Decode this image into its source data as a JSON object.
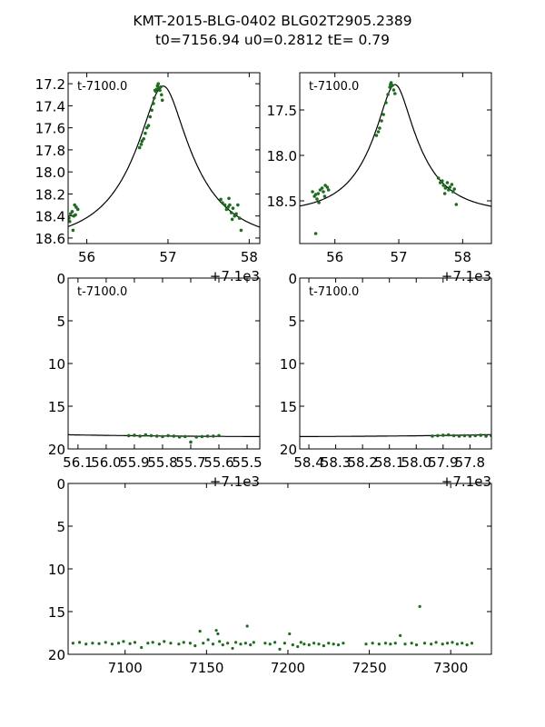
{
  "title": {
    "line1": "KMT-2015-BLG-0402 BLG02T2905.2389",
    "line2": "t0=7156.94 u0=0.2812 tE=   0.79"
  },
  "colors": {
    "points": "#1f6b1f",
    "model": "#000000"
  },
  "chart_data": [
    {
      "type": "scatter",
      "name": "zoom-peak-left",
      "annotation": "t-7100.0",
      "offset_text": "+7.1e3",
      "xlim": [
        55.77,
        58.13
      ],
      "ylim": [
        18.65,
        17.1
      ],
      "xticks": [
        {
          "v": 56,
          "label": "56"
        },
        {
          "v": 57,
          "label": "57"
        },
        {
          "v": 58,
          "label": "58"
        }
      ],
      "yticks": [
        {
          "v": 17.2,
          "label": "17.2"
        },
        {
          "v": 17.4,
          "label": "17.4"
        },
        {
          "v": 17.6,
          "label": "17.6"
        },
        {
          "v": 17.8,
          "label": "17.8"
        },
        {
          "v": 18.0,
          "label": "18.0"
        },
        {
          "v": 18.2,
          "label": "18.2"
        },
        {
          "v": 18.4,
          "label": "18.4"
        },
        {
          "v": 18.6,
          "label": "18.6"
        }
      ],
      "model": true,
      "points": [
        [
          55.78,
          18.42
        ],
        [
          55.8,
          18.38
        ],
        [
          55.82,
          18.36
        ],
        [
          55.84,
          18.4
        ],
        [
          55.85,
          18.3
        ],
        [
          55.87,
          18.32
        ],
        [
          55.89,
          18.34
        ],
        [
          55.79,
          18.45
        ],
        [
          55.83,
          18.53
        ],
        [
          55.86,
          18.39
        ],
        [
          56.65,
          17.78
        ],
        [
          56.67,
          17.75
        ],
        [
          56.68,
          17.72
        ],
        [
          56.7,
          17.7
        ],
        [
          56.72,
          17.65
        ],
        [
          56.74,
          17.6
        ],
        [
          56.76,
          17.58
        ],
        [
          56.78,
          17.5
        ],
        [
          56.8,
          17.44
        ],
        [
          56.82,
          17.38
        ],
        [
          56.83,
          17.33
        ],
        [
          56.85,
          17.27
        ],
        [
          56.86,
          17.25
        ],
        [
          56.87,
          17.22
        ],
        [
          56.88,
          17.2
        ],
        [
          56.89,
          17.24
        ],
        [
          56.9,
          17.26
        ],
        [
          56.91,
          17.23
        ],
        [
          56.92,
          17.3
        ],
        [
          56.93,
          17.35
        ],
        [
          56.84,
          17.26
        ],
        [
          57.65,
          18.25
        ],
        [
          57.67,
          18.28
        ],
        [
          57.7,
          18.3
        ],
        [
          57.72,
          18.34
        ],
        [
          57.74,
          18.32
        ],
        [
          57.76,
          18.3
        ],
        [
          57.78,
          18.37
        ],
        [
          57.8,
          18.33
        ],
        [
          57.82,
          18.4
        ],
        [
          57.84,
          18.38
        ],
        [
          57.86,
          18.3
        ],
        [
          57.88,
          18.42
        ],
        [
          57.75,
          18.24
        ],
        [
          57.9,
          18.53
        ],
        [
          57.79,
          18.43
        ]
      ]
    },
    {
      "type": "scatter",
      "name": "zoom-peak-right",
      "annotation": "t-7100.0",
      "offset_text": "+7.1e3",
      "xlim": [
        55.45,
        58.45
      ],
      "ylim": [
        18.97,
        17.09
      ],
      "xticks": [
        {
          "v": 56,
          "label": "56"
        },
        {
          "v": 57,
          "label": "57"
        },
        {
          "v": 58,
          "label": "58"
        }
      ],
      "yticks": [
        {
          "v": 17.5,
          "label": "17.5"
        },
        {
          "v": 18.0,
          "label": "18.0"
        },
        {
          "v": 18.5,
          "label": "18.5"
        }
      ],
      "model": true,
      "points": [
        [
          55.65,
          18.4
        ],
        [
          55.68,
          18.45
        ],
        [
          55.7,
          18.43
        ],
        [
          55.72,
          18.48
        ],
        [
          55.74,
          18.42
        ],
        [
          55.77,
          18.38
        ],
        [
          55.8,
          18.36
        ],
        [
          55.82,
          18.4
        ],
        [
          55.85,
          18.33
        ],
        [
          55.88,
          18.35
        ],
        [
          55.9,
          18.38
        ],
        [
          55.75,
          18.52
        ],
        [
          55.7,
          18.86
        ],
        [
          55.84,
          18.45
        ],
        [
          56.65,
          17.78
        ],
        [
          56.68,
          17.74
        ],
        [
          56.7,
          17.7
        ],
        [
          56.73,
          17.62
        ],
        [
          56.76,
          17.55
        ],
        [
          56.8,
          17.42
        ],
        [
          56.83,
          17.33
        ],
        [
          56.86,
          17.25
        ],
        [
          56.88,
          17.2
        ],
        [
          56.9,
          17.23
        ],
        [
          56.92,
          17.28
        ],
        [
          56.87,
          17.22
        ],
        [
          56.94,
          17.32
        ],
        [
          57.62,
          18.25
        ],
        [
          57.65,
          18.3
        ],
        [
          57.68,
          18.28
        ],
        [
          57.7,
          18.33
        ],
        [
          57.73,
          18.36
        ],
        [
          57.76,
          18.3
        ],
        [
          57.78,
          18.38
        ],
        [
          57.8,
          18.35
        ],
        [
          57.83,
          18.32
        ],
        [
          57.85,
          18.4
        ],
        [
          57.87,
          18.37
        ],
        [
          57.9,
          18.54
        ],
        [
          57.72,
          18.42
        ]
      ]
    },
    {
      "type": "scatter",
      "name": "pre-peak-window",
      "annotation": "t-7100.0",
      "offset_text": "+7.1e3",
      "xlim": [
        56.135,
        55.455
      ],
      "ylim": [
        20,
        0
      ],
      "xticks": [
        {
          "v": 56.1,
          "label": "56.1"
        },
        {
          "v": 56.0,
          "label": "56.0"
        },
        {
          "v": 55.9,
          "label": "55.9"
        },
        {
          "v": 55.8,
          "label": "55.8"
        },
        {
          "v": 55.7,
          "label": "55.7"
        },
        {
          "v": 55.6,
          "label": "55.6"
        },
        {
          "v": 55.5,
          "label": "55.5"
        }
      ],
      "yticks": [
        {
          "v": 0,
          "label": "0"
        },
        {
          "v": 5,
          "label": "5"
        },
        {
          "v": 10,
          "label": "10"
        },
        {
          "v": 15,
          "label": "15"
        },
        {
          "v": 20,
          "label": "20"
        }
      ],
      "model": true,
      "points": [
        [
          55.92,
          18.45
        ],
        [
          55.9,
          18.4
        ],
        [
          55.88,
          18.5
        ],
        [
          55.86,
          18.35
        ],
        [
          55.84,
          18.45
        ],
        [
          55.82,
          18.5
        ],
        [
          55.8,
          18.55
        ],
        [
          55.78,
          18.45
        ],
        [
          55.76,
          18.5
        ],
        [
          55.74,
          18.6
        ],
        [
          55.72,
          18.55
        ],
        [
          55.7,
          19.2
        ],
        [
          55.68,
          18.6
        ],
        [
          55.66,
          18.55
        ],
        [
          55.64,
          18.5
        ],
        [
          55.62,
          18.5
        ],
        [
          55.6,
          18.45
        ]
      ]
    },
    {
      "type": "scatter",
      "name": "post-peak-window",
      "annotation": "t-7100.0",
      "offset_text": "+7.1e3",
      "xlim": [
        58.434,
        57.72
      ],
      "ylim": [
        20,
        0
      ],
      "xticks": [
        {
          "v": 58.4,
          "label": "58.4"
        },
        {
          "v": 58.3,
          "label": "58.3"
        },
        {
          "v": 58.2,
          "label": "58.2"
        },
        {
          "v": 58.1,
          "label": "58.1"
        },
        {
          "v": 58.0,
          "label": "58.0"
        },
        {
          "v": 57.9,
          "label": "57.9"
        },
        {
          "v": 57.8,
          "label": "57.8"
        }
      ],
      "yticks": [
        {
          "v": 0,
          "label": "0"
        },
        {
          "v": 5,
          "label": "5"
        },
        {
          "v": 10,
          "label": "10"
        },
        {
          "v": 15,
          "label": "15"
        },
        {
          "v": 20,
          "label": "20"
        }
      ],
      "model": true,
      "points": [
        [
          57.94,
          18.5
        ],
        [
          57.92,
          18.45
        ],
        [
          57.9,
          18.4
        ],
        [
          57.88,
          18.35
        ],
        [
          57.86,
          18.45
        ],
        [
          57.84,
          18.5
        ],
        [
          57.82,
          18.45
        ],
        [
          57.8,
          18.5
        ],
        [
          57.78,
          18.45
        ],
        [
          57.76,
          18.4
        ],
        [
          57.74,
          18.5
        ],
        [
          57.72,
          18.45
        ]
      ]
    },
    {
      "type": "scatter",
      "name": "full-season",
      "xlim": [
        7065,
        7325
      ],
      "ylim": [
        20,
        0
      ],
      "xticks": [
        {
          "v": 7100,
          "label": "7100"
        },
        {
          "v": 7150,
          "label": "7150"
        },
        {
          "v": 7200,
          "label": "7200"
        },
        {
          "v": 7250,
          "label": "7250"
        },
        {
          "v": 7300,
          "label": "7300"
        }
      ],
      "yticks": [
        {
          "v": 0,
          "label": "0"
        },
        {
          "v": 5,
          "label": "5"
        },
        {
          "v": 10,
          "label": "10"
        },
        {
          "v": 15,
          "label": "15"
        },
        {
          "v": 20,
          "label": "20"
        }
      ],
      "model": false,
      "points": [
        [
          7068,
          18.7
        ],
        [
          7072,
          18.6
        ],
        [
          7076,
          18.8
        ],
        [
          7080,
          18.7
        ],
        [
          7084,
          18.75
        ],
        [
          7088,
          18.6
        ],
        [
          7092,
          18.8
        ],
        [
          7096,
          18.7
        ],
        [
          7099,
          18.5
        ],
        [
          7103,
          18.75
        ],
        [
          7106,
          18.6
        ],
        [
          7110,
          19.2
        ],
        [
          7114,
          18.7
        ],
        [
          7117,
          18.6
        ],
        [
          7121,
          18.8
        ],
        [
          7124,
          18.5
        ],
        [
          7128,
          18.7
        ],
        [
          7133,
          18.8
        ],
        [
          7136,
          18.6
        ],
        [
          7140,
          18.7
        ],
        [
          7143,
          19.0
        ],
        [
          7146,
          17.3
        ],
        [
          7148,
          18.7
        ],
        [
          7151,
          18.3
        ],
        [
          7154,
          18.8
        ],
        [
          7156,
          17.2
        ],
        [
          7157,
          17.6
        ],
        [
          7158,
          18.5
        ],
        [
          7160,
          18.9
        ],
        [
          7163,
          18.7
        ],
        [
          7166,
          19.3
        ],
        [
          7168,
          18.6
        ],
        [
          7171,
          18.8
        ],
        [
          7174,
          18.7
        ],
        [
          7175,
          16.7
        ],
        [
          7177,
          18.9
        ],
        [
          7179,
          18.6
        ],
        [
          7186,
          18.7
        ],
        [
          7189,
          18.8
        ],
        [
          7192,
          18.6
        ],
        [
          7195,
          19.4
        ],
        [
          7198,
          18.7
        ],
        [
          7201,
          17.6
        ],
        [
          7203,
          18.9
        ],
        [
          7206,
          19.1
        ],
        [
          7208,
          18.6
        ],
        [
          7210,
          18.8
        ],
        [
          7213,
          18.9
        ],
        [
          7216,
          18.7
        ],
        [
          7219,
          18.8
        ],
        [
          7222,
          19.0
        ],
        [
          7225,
          18.7
        ],
        [
          7228,
          18.8
        ],
        [
          7231,
          18.9
        ],
        [
          7234,
          18.7
        ],
        [
          7248,
          18.8
        ],
        [
          7252,
          18.7
        ],
        [
          7256,
          18.8
        ],
        [
          7260,
          18.7
        ],
        [
          7263,
          18.8
        ],
        [
          7266,
          18.7
        ],
        [
          7269,
          17.8
        ],
        [
          7272,
          18.8
        ],
        [
          7276,
          18.7
        ],
        [
          7279,
          18.9
        ],
        [
          7281,
          14.4
        ],
        [
          7284,
          18.7
        ],
        [
          7288,
          18.8
        ],
        [
          7291,
          18.6
        ],
        [
          7295,
          18.8
        ],
        [
          7298,
          18.7
        ],
        [
          7301,
          18.6
        ],
        [
          7304,
          18.8
        ],
        [
          7307,
          18.7
        ],
        [
          7310,
          18.9
        ],
        [
          7313,
          18.7
        ]
      ]
    }
  ]
}
